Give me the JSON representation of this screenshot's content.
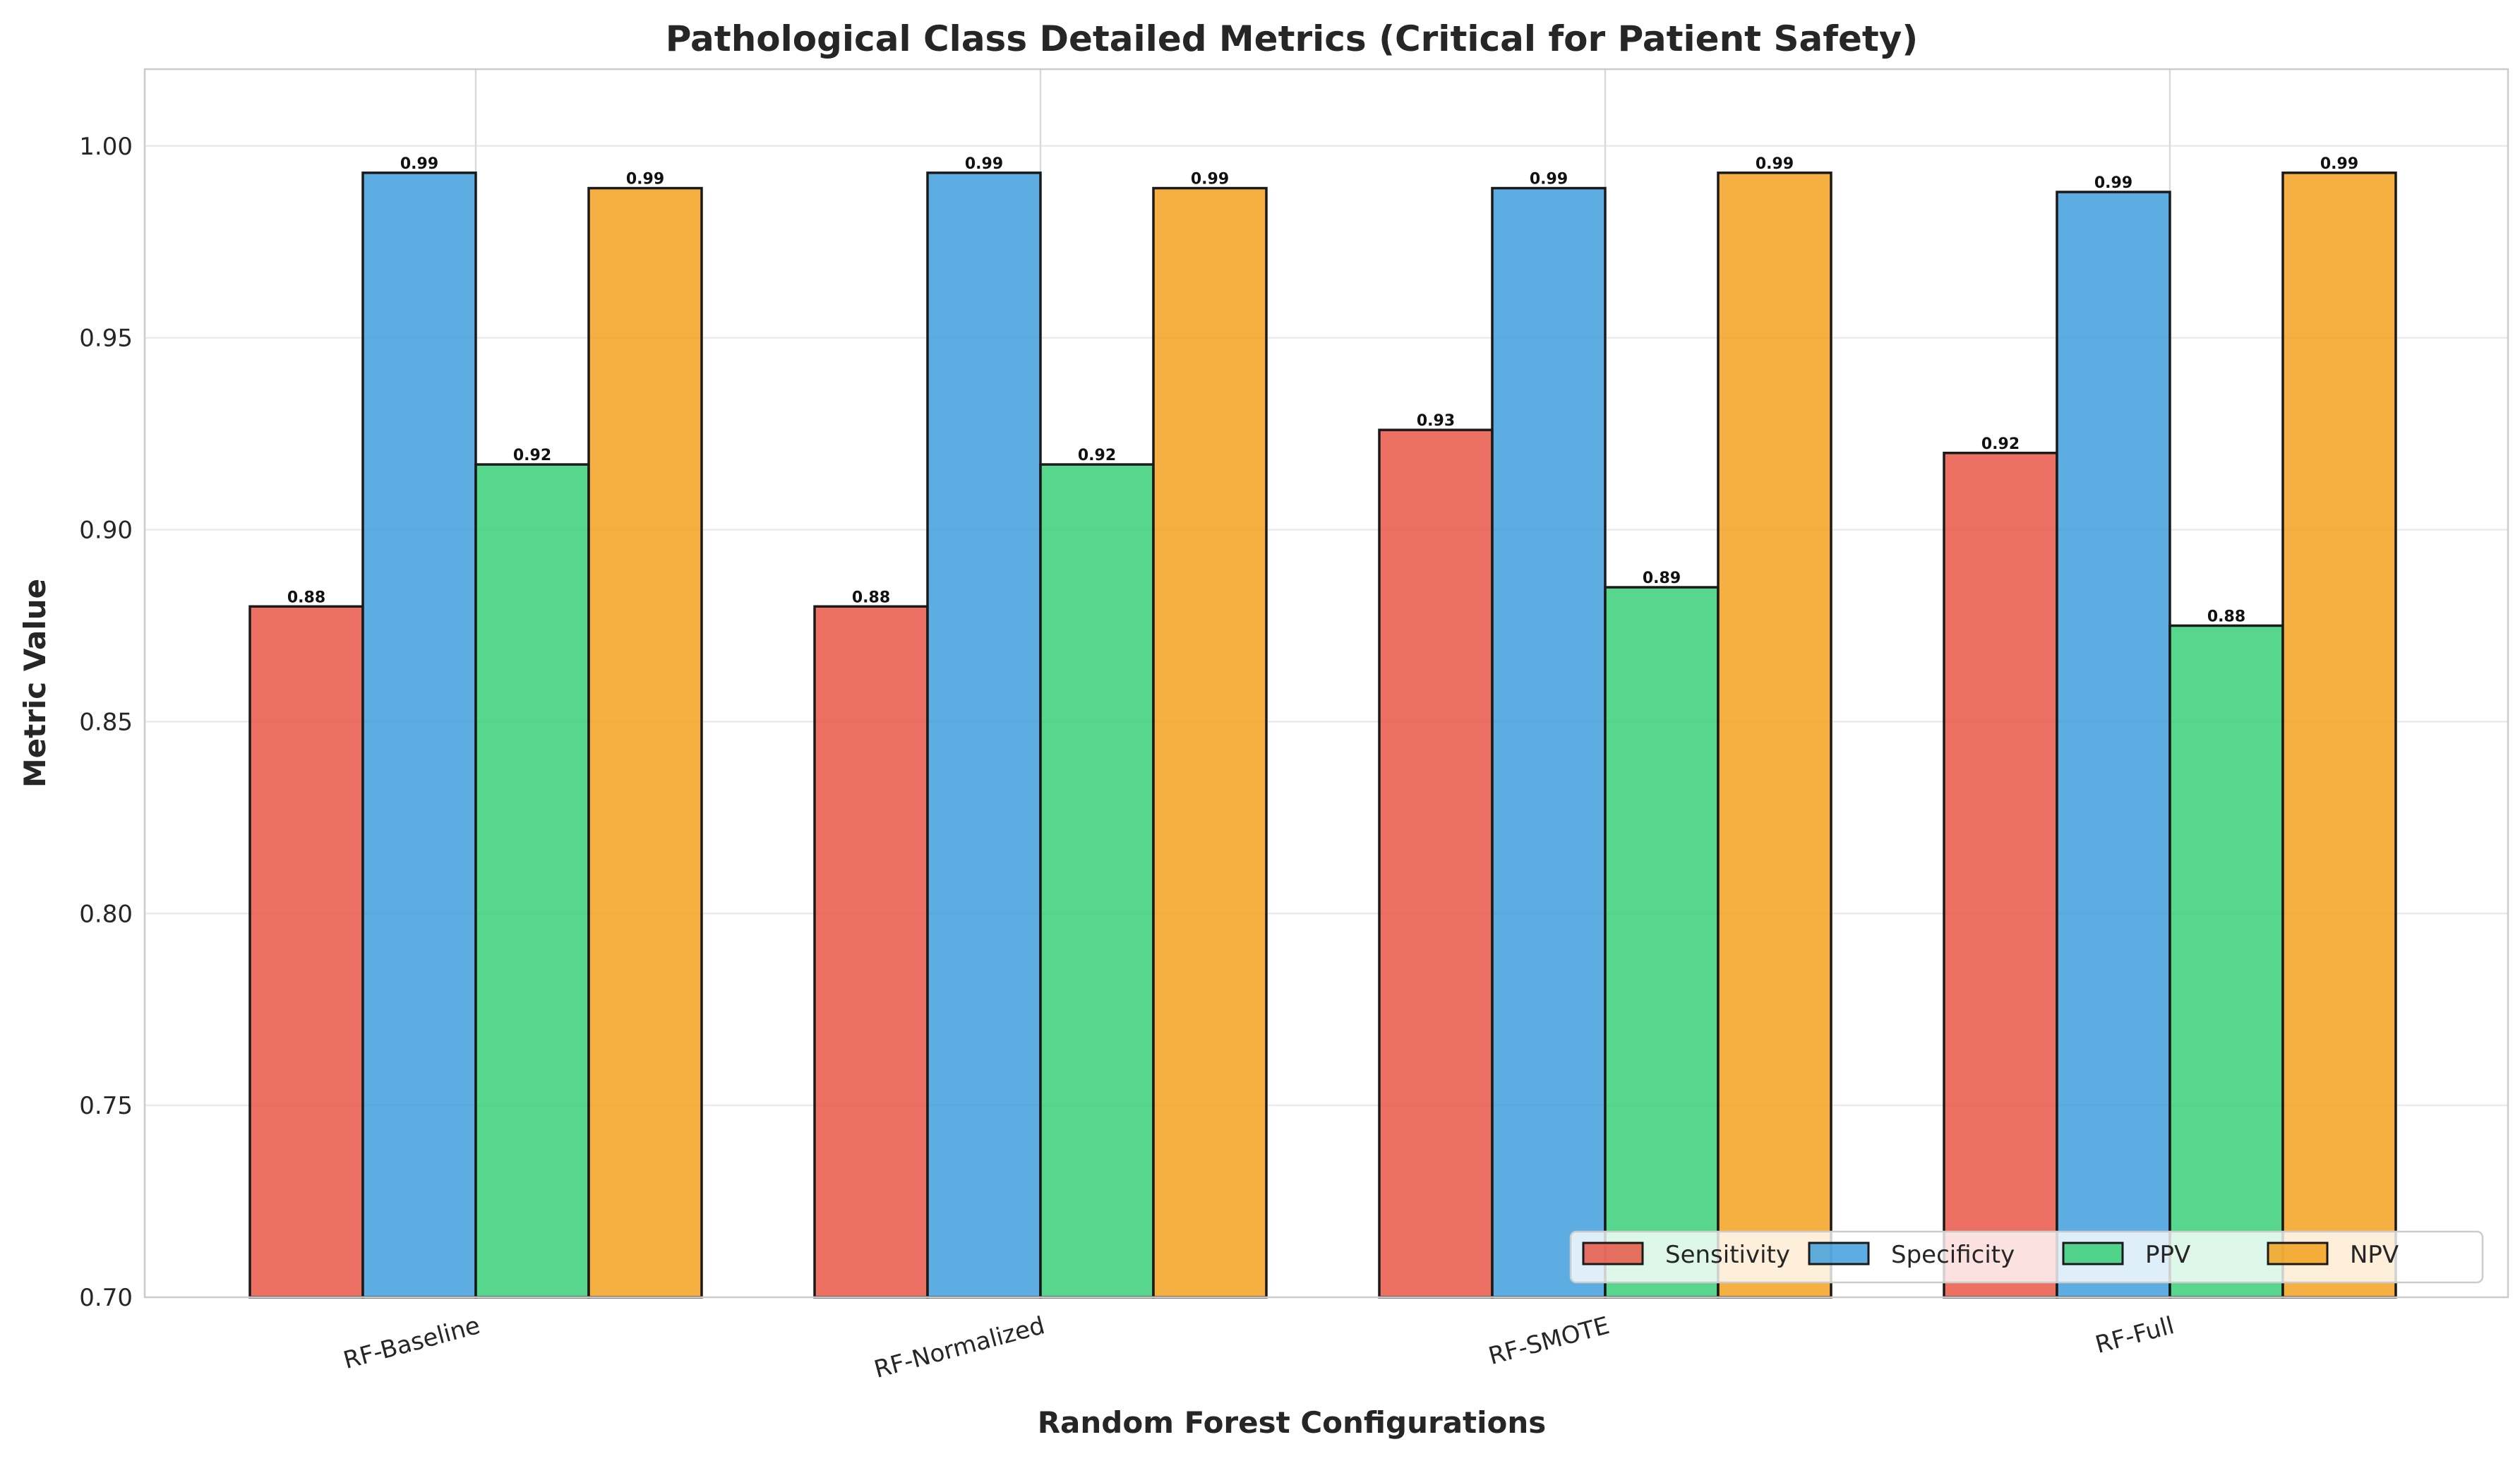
{
  "chart_data": {
    "type": "bar",
    "title": "Pathological Class Detailed Metrics (Critical for Patient Safety)",
    "xlabel": "Random Forest Configurations",
    "ylabel": "Metric Value",
    "ylim": [
      0.7,
      1.02
    ],
    "yticks": [
      "0.70",
      "0.75",
      "0.80",
      "0.85",
      "0.90",
      "0.95",
      "1.00"
    ],
    "categories": [
      "RF-Baseline",
      "RF-Normalized",
      "RF-SMOTE",
      "RF-Full"
    ],
    "series": [
      {
        "name": "Sensitivity",
        "color": "#e74c3c",
        "values": [
          0.88,
          0.88,
          0.926,
          0.92
        ],
        "labels": [
          "0.88",
          "0.88",
          "0.93",
          "0.92"
        ]
      },
      {
        "name": "Specificity",
        "color": "#3498db",
        "values": [
          0.993,
          0.993,
          0.989,
          0.988
        ],
        "labels": [
          "0.99",
          "0.99",
          "0.99",
          "0.99"
        ]
      },
      {
        "name": "PPV",
        "color": "#2ecc71",
        "values": [
          0.917,
          0.917,
          0.885,
          0.875
        ],
        "labels": [
          "0.92",
          "0.92",
          "0.89",
          "0.88"
        ]
      },
      {
        "name": "NPV",
        "color": "#f39c12",
        "values": [
          0.989,
          0.989,
          0.993,
          0.993
        ],
        "labels": [
          "0.99",
          "0.99",
          "0.99",
          "0.99"
        ]
      }
    ],
    "grid": true,
    "legend": "lower-right"
  }
}
